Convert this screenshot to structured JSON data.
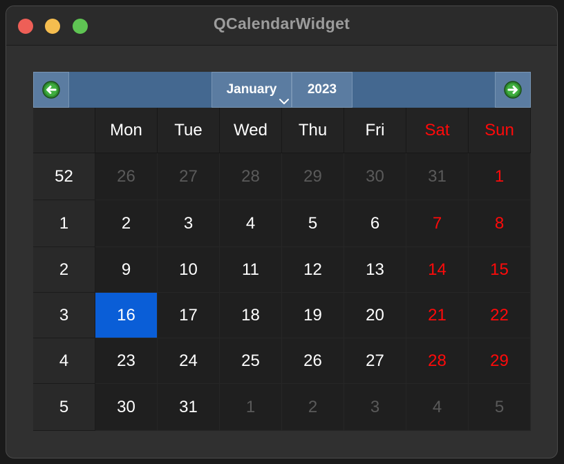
{
  "window": {
    "title": "QCalendarWidget"
  },
  "navigation": {
    "month": "January",
    "year": "2023"
  },
  "weekdays": [
    "Mon",
    "Tue",
    "Wed",
    "Thu",
    "Fri",
    "Sat",
    "Sun"
  ],
  "weeks": [
    {
      "number": "52",
      "days": [
        "26",
        "27",
        "28",
        "29",
        "30",
        "31",
        "1"
      ]
    },
    {
      "number": "1",
      "days": [
        "2",
        "3",
        "4",
        "5",
        "6",
        "7",
        "8"
      ]
    },
    {
      "number": "2",
      "days": [
        "9",
        "10",
        "11",
        "12",
        "13",
        "14",
        "15"
      ]
    },
    {
      "number": "3",
      "days": [
        "16",
        "17",
        "18",
        "19",
        "20",
        "21",
        "22"
      ]
    },
    {
      "number": "4",
      "days": [
        "23",
        "24",
        "25",
        "26",
        "27",
        "28",
        "29"
      ]
    },
    {
      "number": "5",
      "days": [
        "30",
        "31",
        "1",
        "2",
        "3",
        "4",
        "5"
      ]
    }
  ],
  "colors": {
    "nav_bar": "#446890",
    "weekend_text": "#ff0a0a",
    "selected_day": "#0a5ed7",
    "other_month_text": "#5a5a5a"
  }
}
